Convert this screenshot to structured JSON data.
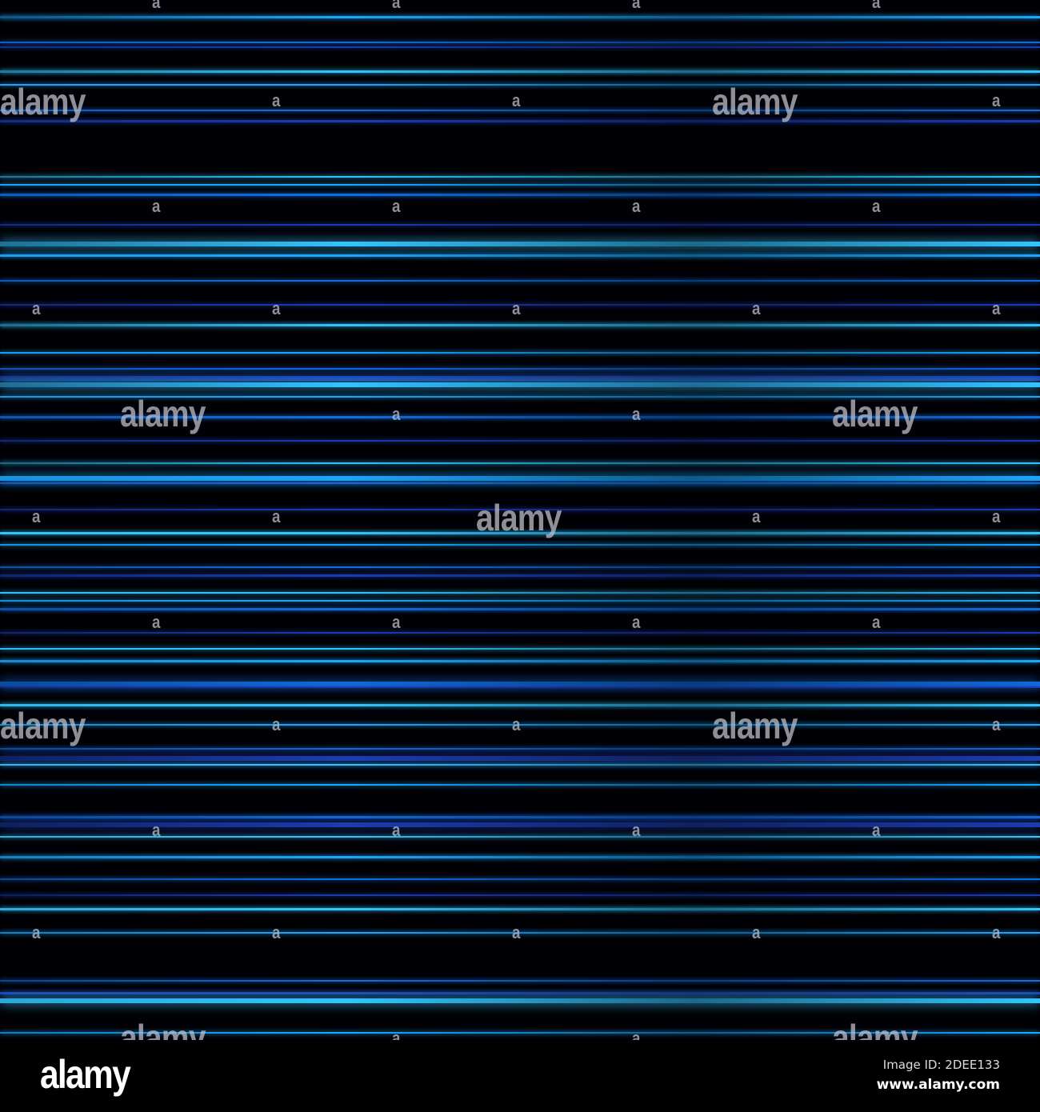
{
  "image": {
    "background_color": "#010105",
    "streak_colors": [
      "#1aa8ff",
      "#0f6fe0",
      "#1c3cb0",
      "#33c4ff"
    ],
    "watermark_text": "alamy",
    "watermark_glyph": "a"
  },
  "footer": {
    "logo": "alamy",
    "image_id": "Image ID: 2DEE133",
    "website": "www.alamy.com"
  }
}
